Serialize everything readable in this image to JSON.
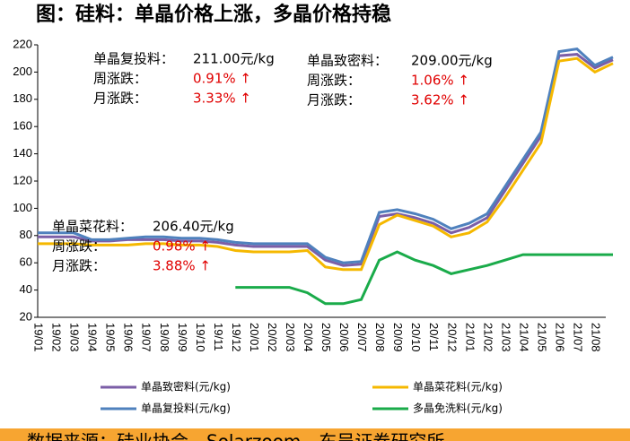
{
  "chart_data": {
    "type": "line",
    "title": "图：硅料：单晶价格上涨，多晶价格持稳",
    "categories": [
      "19/01",
      "19/02",
      "19/03",
      "19/04",
      "19/05",
      "19/06",
      "19/07",
      "19/08",
      "19/09",
      "19/10",
      "19/11",
      "19/12",
      "20/01",
      "20/02",
      "20/03",
      "20/04",
      "20/05",
      "20/06",
      "20/07",
      "20/08",
      "20/09",
      "20/10",
      "20/11",
      "20/12",
      "21/01",
      "21/02",
      "21/03",
      "21/04",
      "21/05",
      "21/06",
      "21/07",
      "21/08",
      null
    ],
    "series": [
      {
        "name": "单晶致密料(元/kg)",
        "color": "#7b5ea7",
        "values": [
          79,
          79,
          79,
          76,
          76,
          77,
          77,
          77,
          76,
          76,
          75,
          73,
          72,
          72,
          72,
          72,
          62,
          58,
          59,
          94,
          96,
          93,
          89,
          82,
          86,
          93,
          113,
          133,
          153,
          212,
          213,
          203,
          209
        ]
      },
      {
        "name": "单晶复投料(元/kg)",
        "color": "#4f81bd",
        "values": [
          82,
          82,
          82,
          77,
          77,
          78,
          79,
          79,
          78,
          78,
          77,
          75,
          74,
          74,
          74,
          74,
          64,
          60,
          61,
          97,
          99,
          96,
          92,
          85,
          89,
          96,
          116,
          136,
          156,
          215,
          217,
          205,
          211
        ]
      },
      {
        "name": "单晶菜花料(元/kg)",
        "color": "#f5b800",
        "values": [
          74,
          74,
          74,
          73,
          73,
          73,
          74,
          74,
          73,
          73,
          72,
          69,
          68,
          68,
          68,
          69,
          57,
          55,
          55,
          88,
          95,
          91,
          87,
          79,
          82,
          90,
          108,
          128,
          148,
          208,
          210,
          200,
          206.4
        ]
      },
      {
        "name": "多晶免洗料(元/kg)",
        "color": "#1aab4a",
        "values": [
          null,
          null,
          null,
          null,
          null,
          null,
          null,
          null,
          null,
          null,
          null,
          42,
          42,
          42,
          42,
          38,
          30,
          30,
          33,
          62,
          68,
          62,
          58,
          52,
          55,
          58,
          62,
          66,
          66,
          66,
          66,
          66,
          66
        ]
      }
    ],
    "ylim": [
      20,
      220
    ],
    "yticks": [
      20,
      40,
      60,
      80,
      100,
      120,
      140,
      160,
      180,
      200,
      220
    ],
    "annotations": [
      {
        "name": "单晶复投料：",
        "price": "211.00元/kg",
        "week_label": "周涨跌：",
        "week": "0.91% ↑",
        "month_label": "月涨跌：",
        "month": "3.33% ↑"
      },
      {
        "name": "单晶致密料：",
        "price": "209.00元/kg",
        "week_label": "周涨跌：",
        "week": "1.06% ↑",
        "month_label": "月涨跌：",
        "month": "3.62% ↑"
      },
      {
        "name": "单晶菜花料：",
        "price": "206.40元/kg",
        "week_label": "周涨跌：",
        "week": "0.98% ↑",
        "month_label": "月涨跌：",
        "month": "3.88% ↑"
      }
    ],
    "source": "数据来源：硅业协会，Solarzoom，东吴证券研究所"
  }
}
